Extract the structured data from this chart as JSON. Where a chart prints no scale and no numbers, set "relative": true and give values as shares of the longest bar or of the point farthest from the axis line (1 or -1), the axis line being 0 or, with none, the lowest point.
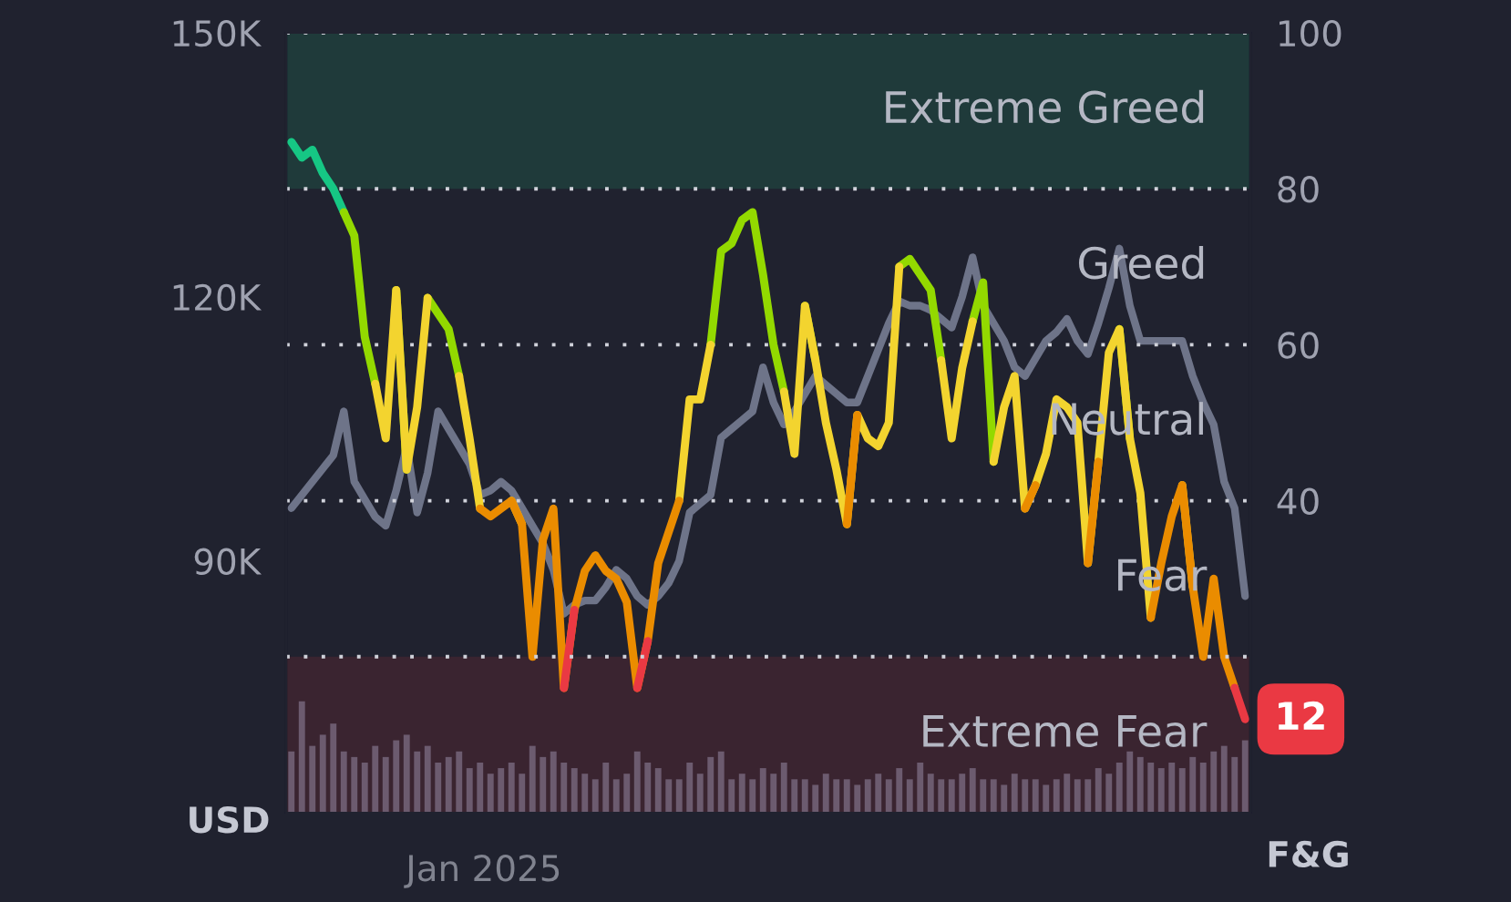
{
  "chart_data": [
    {
      "type": "line",
      "categories": [
        null,
        null,
        null,
        null,
        null,
        null,
        null,
        null,
        null,
        null,
        null,
        null,
        null,
        null,
        null,
        null,
        null,
        null,
        null,
        null,
        null,
        null,
        null,
        null,
        null,
        null,
        null,
        null,
        null,
        null,
        null,
        null,
        null,
        null,
        null,
        null,
        null,
        null,
        null,
        null,
        null,
        null,
        null,
        null,
        null,
        null,
        null,
        null,
        null,
        null,
        null,
        null,
        null,
        null,
        null,
        null,
        null,
        null,
        null,
        null,
        null,
        null,
        null,
        null,
        null,
        null,
        null,
        null,
        null,
        null,
        null,
        null,
        null,
        null,
        null,
        null,
        null,
        null,
        null,
        null,
        null,
        null,
        null,
        null,
        null,
        null,
        null,
        null,
        null,
        null,
        null,
        null
      ],
      "ylim": [
        61400,
        150000
      ],
      "yticks": [
        {
          "value": 90000,
          "label": "90K"
        },
        {
          "value": 120000,
          "label": "120K"
        },
        {
          "value": 150000,
          "label": "150K"
        }
      ],
      "y2lim": [
        0,
        100
      ],
      "y2ticks": [
        40,
        60,
        80,
        100
      ],
      "ylabel": "USD",
      "y2label": "F&G",
      "grid": "y2",
      "ref_lines": [
        {
          "axis": "y2",
          "value": 20,
          "line_style": "dotted"
        }
      ],
      "bands": [
        {
          "axis": "y2",
          "from": 80,
          "to": 100,
          "label": "Extreme Greed",
          "color": "#1f3a3a"
        },
        {
          "axis": "y2",
          "from": 0,
          "to": 20,
          "label": "Extreme Fear",
          "color": "#3a2430"
        }
      ],
      "annotations": [
        "Jan 2025",
        "Greed",
        "Neutral",
        "Fear"
      ],
      "series": [
        {
          "color": "#6e7489",
          "values": [
            96000,
            97500,
            99000,
            100500,
            102000,
            107000,
            99000,
            97000,
            95000,
            94000,
            98000,
            103000,
            95500,
            100000,
            107000,
            105000,
            103000,
            101000,
            97500,
            98000,
            99000,
            98000,
            96000,
            94000,
            92000,
            89000,
            84000,
            85000,
            85500,
            85500,
            87000,
            89000,
            88000,
            86000,
            85000,
            86000,
            87500,
            90000,
            95500,
            96500,
            97500,
            104000,
            105000,
            106000,
            107000,
            112000,
            108000,
            105500,
            107000,
            109000,
            111000,
            110000,
            109000,
            108000,
            108000,
            111000,
            114000,
            117000,
            119500,
            119000,
            119000,
            118500,
            117500,
            116500,
            120000,
            124500,
            119000,
            117000,
            115000,
            112000,
            111000,
            113000,
            115000,
            116000,
            117500,
            115000,
            113500,
            117000,
            121000,
            125500,
            119000,
            115000,
            115000,
            115000,
            115000,
            115000,
            111000,
            108000,
            105500,
            99000,
            96000,
            86000
          ]
        },
        {
          "axis": "y2",
          "color": "#16c784",
          "values": [
            86,
            84,
            85,
            82,
            80,
            77,
            null,
            null,
            null,
            null,
            null,
            null,
            null,
            null,
            null,
            null,
            null,
            null,
            null,
            null,
            null,
            null,
            null,
            null,
            null,
            null,
            null,
            null,
            null,
            null,
            null,
            null,
            null,
            null,
            null,
            null,
            null,
            null,
            null,
            null,
            null,
            null,
            null,
            null,
            null,
            null,
            null,
            null,
            null,
            null,
            null,
            null,
            null,
            null,
            null,
            null,
            null,
            null,
            null,
            null,
            null,
            null,
            null,
            null,
            null,
            null,
            null,
            null,
            null,
            null,
            null,
            null,
            null,
            null,
            null,
            null,
            null,
            null,
            null,
            null,
            null,
            null,
            null,
            null,
            null,
            null,
            null,
            null,
            null,
            null,
            null,
            null
          ]
        },
        {
          "axis": "y2",
          "color": "#93d900",
          "values": [
            null,
            null,
            null,
            null,
            null,
            77,
            74,
            61,
            55,
            null,
            67,
            44,
            null,
            66,
            64,
            62,
            56,
            null,
            null,
            null,
            null,
            null,
            null,
            null,
            null,
            null,
            null,
            null,
            null,
            null,
            null,
            null,
            null,
            null,
            null,
            null,
            null,
            null,
            null,
            null,
            60,
            72,
            73,
            76,
            77,
            69,
            60,
            54,
            null,
            65,
            58,
            null,
            null,
            null,
            null,
            null,
            null,
            null,
            70,
            71,
            69,
            67,
            58,
            null,
            null,
            63,
            68,
            45,
            null,
            null,
            null,
            null,
            null,
            null,
            null,
            null,
            null,
            null,
            null,
            62,
            48,
            null,
            null,
            null,
            null,
            null,
            null,
            null,
            null,
            null,
            null,
            null
          ]
        },
        {
          "axis": "y2",
          "color": "#f3d42f",
          "values": [
            null,
            null,
            null,
            null,
            null,
            null,
            null,
            null,
            55,
            48,
            67,
            44,
            52,
            66,
            null,
            null,
            56,
            48,
            39,
            null,
            null,
            40,
            37,
            null,
            null,
            null,
            null,
            null,
            null,
            null,
            null,
            null,
            null,
            null,
            null,
            null,
            null,
            40,
            53,
            53,
            60,
            null,
            null,
            null,
            null,
            null,
            null,
            54,
            46,
            65,
            58,
            50,
            44,
            37,
            51,
            48,
            47,
            50,
            70,
            null,
            null,
            null,
            58,
            48,
            57,
            63,
            null,
            45,
            52,
            56,
            39,
            42,
            46,
            53,
            52,
            50,
            32,
            45,
            59,
            62,
            48,
            41,
            25,
            null,
            null,
            42,
            29,
            null,
            null,
            null,
            null,
            null
          ]
        },
        {
          "axis": "y2",
          "color": "#ea8c00",
          "values": [
            null,
            null,
            null,
            null,
            null,
            null,
            null,
            null,
            null,
            null,
            null,
            null,
            null,
            null,
            null,
            null,
            null,
            null,
            39,
            38,
            39,
            40,
            37,
            20,
            35,
            39,
            16,
            26,
            31,
            33,
            31,
            30,
            27,
            16,
            22,
            32,
            36,
            40,
            null,
            null,
            null,
            null,
            null,
            null,
            null,
            null,
            null,
            null,
            null,
            null,
            null,
            null,
            null,
            37,
            51,
            null,
            null,
            null,
            null,
            null,
            null,
            null,
            null,
            null,
            null,
            null,
            null,
            null,
            null,
            null,
            39,
            42,
            null,
            null,
            null,
            null,
            32,
            45,
            null,
            null,
            null,
            null,
            25,
            32,
            38,
            42,
            29,
            20,
            30,
            20,
            16,
            null
          ]
        },
        {
          "axis": "y2",
          "color": "#ea3943",
          "values": [
            null,
            null,
            null,
            null,
            null,
            null,
            null,
            null,
            null,
            null,
            null,
            null,
            null,
            null,
            null,
            null,
            null,
            null,
            null,
            null,
            null,
            null,
            null,
            null,
            null,
            null,
            16,
            26,
            null,
            null,
            null,
            null,
            null,
            16,
            22,
            null,
            null,
            null,
            null,
            null,
            null,
            null,
            null,
            null,
            null,
            null,
            null,
            null,
            null,
            null,
            null,
            null,
            null,
            null,
            null,
            null,
            null,
            null,
            null,
            null,
            null,
            null,
            null,
            null,
            null,
            null,
            null,
            null,
            null,
            null,
            null,
            null,
            null,
            null,
            null,
            null,
            null,
            null,
            null,
            null,
            null,
            null,
            null,
            null,
            null,
            null,
            null,
            null,
            null,
            null,
            16,
            12
          ],
          "value_labels": [
            null,
            null,
            null,
            null,
            null,
            null,
            null,
            null,
            null,
            null,
            null,
            null,
            null,
            null,
            null,
            null,
            null,
            null,
            null,
            null,
            null,
            null,
            null,
            null,
            null,
            null,
            null,
            null,
            null,
            null,
            null,
            null,
            null,
            null,
            null,
            null,
            null,
            null,
            null,
            null,
            null,
            null,
            null,
            null,
            null,
            null,
            null,
            null,
            null,
            null,
            null,
            null,
            null,
            null,
            null,
            null,
            null,
            null,
            null,
            null,
            null,
            null,
            null,
            null,
            null,
            null,
            null,
            null,
            null,
            null,
            null,
            null,
            null,
            null,
            null,
            null,
            null,
            null,
            null,
            null,
            null,
            null,
            null,
            null,
            null,
            null,
            null,
            null,
            null,
            null,
            null,
            "12"
          ]
        }
      ]
    },
    {
      "type": "bar",
      "relative": true,
      "color": "#6c5b6f",
      "categories": [
        null,
        null,
        null,
        null,
        null,
        null,
        null,
        null,
        null,
        null,
        null,
        null,
        null,
        null,
        null,
        null,
        null,
        null,
        null,
        null,
        null,
        null,
        null,
        null,
        null,
        null,
        null,
        null,
        null,
        null,
        null,
        null,
        null,
        null,
        null,
        null,
        null,
        null,
        null,
        null,
        null,
        null,
        null,
        null,
        null,
        null,
        null,
        null,
        null,
        null,
        null,
        null,
        null,
        null,
        null,
        null,
        null,
        null,
        null,
        null,
        null,
        null,
        null,
        null,
        null,
        null,
        null,
        null,
        null,
        null,
        null,
        null,
        null,
        null,
        null,
        null,
        null,
        null,
        null,
        null,
        null,
        null,
        null,
        null,
        null,
        null,
        null,
        null,
        null,
        null,
        null,
        null
      ],
      "values": [
        0.55,
        1,
        0.6,
        0.7,
        0.8,
        0.55,
        0.5,
        0.45,
        0.6,
        0.5,
        0.65,
        0.7,
        0.55,
        0.6,
        0.45,
        0.5,
        0.55,
        0.4,
        0.45,
        0.35,
        0.4,
        0.45,
        0.35,
        0.6,
        0.5,
        0.55,
        0.45,
        0.4,
        0.35,
        0.3,
        0.45,
        0.3,
        0.35,
        0.55,
        0.45,
        0.4,
        0.3,
        0.3,
        0.45,
        0.35,
        0.5,
        0.55,
        0.3,
        0.35,
        0.3,
        0.4,
        0.35,
        0.45,
        0.3,
        0.3,
        0.25,
        0.35,
        0.3,
        0.3,
        0.25,
        0.3,
        0.35,
        0.3,
        0.4,
        0.3,
        0.45,
        0.35,
        0.3,
        0.3,
        0.35,
        0.4,
        0.3,
        0.3,
        0.25,
        0.35,
        0.3,
        0.3,
        0.25,
        0.3,
        0.35,
        0.3,
        0.3,
        0.4,
        0.35,
        0.45,
        0.55,
        0.5,
        0.45,
        0.4,
        0.45,
        0.4,
        0.5,
        0.45,
        0.55,
        0.6,
        0.5,
        0.65
      ]
    }
  ]
}
